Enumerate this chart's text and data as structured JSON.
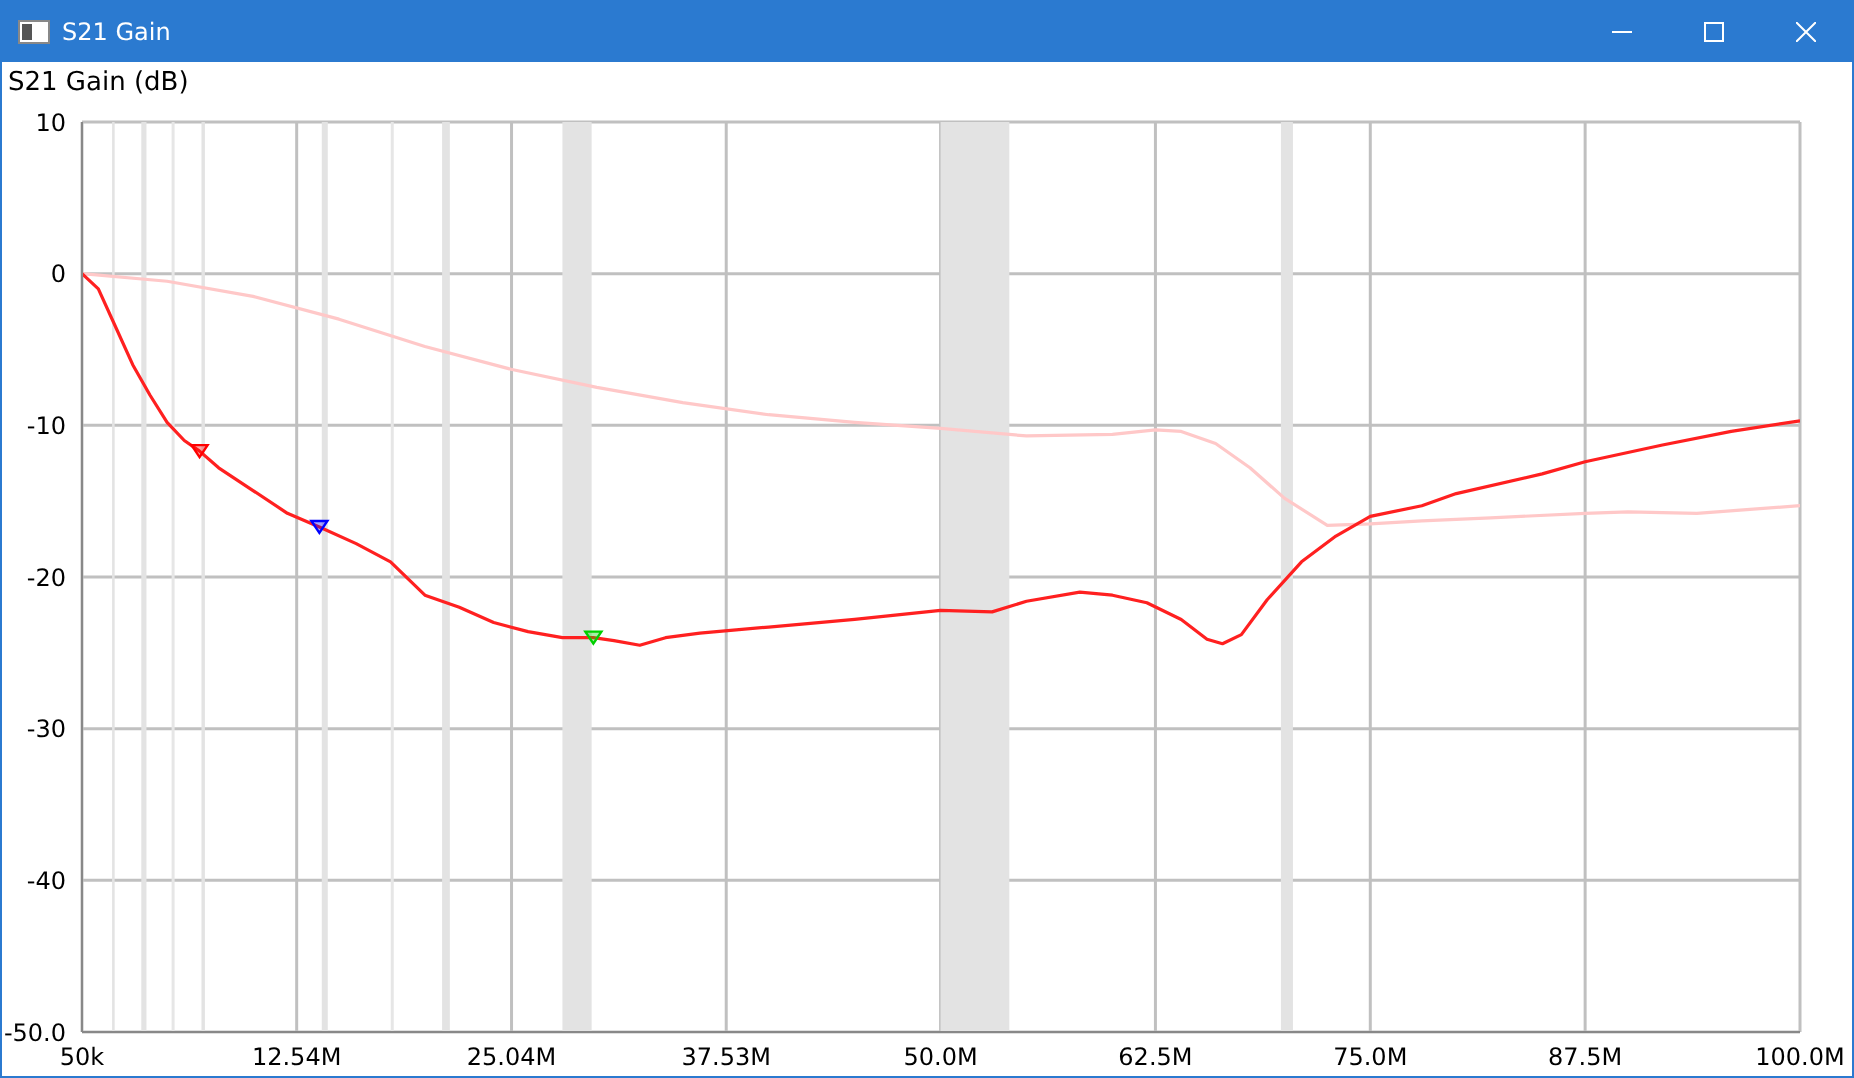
{
  "chart_data": {
    "type": "line",
    "title": "S21 Gain",
    "ylabel": "S21  Gain (dB)",
    "xlim": [
      50000,
      100000000
    ],
    "xticks": [
      {
        "value": 50000,
        "label": "50k"
      },
      {
        "value": 12540000,
        "label": "12.54M"
      },
      {
        "value": 25040000,
        "label": "25.04M"
      },
      {
        "value": 37530000,
        "label": "37.53M"
      },
      {
        "value": 50000000,
        "label": "50.0M"
      },
      {
        "value": 62500000,
        "label": "62.5M"
      },
      {
        "value": 75000000,
        "label": "75.0M"
      },
      {
        "value": 87500000,
        "label": "87.5M"
      },
      {
        "value": 100000000,
        "label": "100.0M"
      }
    ],
    "ylim": [
      -50,
      10
    ],
    "yticks": [
      10,
      0,
      -10,
      -20,
      -30,
      -40,
      {
        "value": -50,
        "label": "-50.0"
      }
    ],
    "grid": true,
    "line_style": "solid",
    "series": [
      {
        "type": "line",
        "color": "#ffc8c8",
        "x": [
          50000,
          5000000,
          10000000,
          15000000,
          20000000,
          25000000,
          30000000,
          35000000,
          40000000,
          45000000,
          50000000,
          55000000,
          60000000,
          62500000,
          64000000,
          66000000,
          68000000,
          70000000,
          72500000,
          75000000,
          78000000,
          82000000,
          87500000,
          90000000,
          94000000,
          100000000
        ],
        "values": [
          0,
          -0.5,
          -1.5,
          -3,
          -4.8,
          -6.3,
          -7.5,
          -8.5,
          -9.3,
          -9.8,
          -10.2,
          -10.7,
          -10.6,
          -10.3,
          -10.4,
          -11.2,
          -12.8,
          -14.8,
          -16.6,
          -16.5,
          -16.3,
          -16.1,
          -15.8,
          -15.7,
          -15.8,
          -15.3
        ]
      },
      {
        "type": "line",
        "color": "#ff2020",
        "x": [
          50000,
          1000000,
          2000000,
          3000000,
          4000000,
          5000000,
          6000000,
          6890000,
          8000000,
          10000000,
          12000000,
          13860000,
          16000000,
          18000000,
          20000000,
          22000000,
          24000000,
          26000000,
          28000000,
          29800000,
          31000000,
          32500000,
          34000000,
          36000000,
          40000000,
          45000000,
          50000000,
          53000000,
          55000000,
          58100000,
          60000000,
          62000000,
          64000000,
          65500000,
          66400000,
          67500000,
          69000000,
          71000000,
          73000000,
          75000000,
          78000000,
          80000000,
          85000000,
          87500000,
          92000000,
          96000000,
          100000000
        ],
        "values": [
          0,
          -1,
          -3.5,
          -6,
          -8,
          -9.8,
          -11,
          -11.7,
          -12.8,
          -14.3,
          -15.8,
          -16.7,
          -17.8,
          -19,
          -21.2,
          -22,
          -23,
          -23.6,
          -24,
          -24,
          -24.2,
          -24.5,
          -24,
          -23.7,
          -23.3,
          -22.8,
          -22.2,
          -22.3,
          -21.6,
          -21,
          -21.2,
          -21.7,
          -22.8,
          -24.1,
          -24.4,
          -23.8,
          -21.5,
          -19,
          -17.3,
          -16,
          -15.3,
          -14.5,
          -13.2,
          -12.4,
          -11.3,
          -10.4,
          -9.7
        ]
      },
      {
        "type": "scatter",
        "marker": "triangle",
        "x": [
          6890000,
          13860000,
          29800000
        ],
        "values": [
          -11.7,
          -16.7,
          -24.0
        ],
        "colors": [
          "#ff0000",
          "#0000ff",
          "#00d000"
        ]
      }
    ],
    "bands": [
      {
        "axis": "x",
        "from": 1800000,
        "to": 1950000,
        "color": "#e3e3e3"
      },
      {
        "axis": "x",
        "from": 3500000,
        "to": 3800000,
        "color": "#e3e3e3"
      },
      {
        "axis": "x",
        "from": 7000000,
        "to": 7200000,
        "color": "#e3e3e3"
      },
      {
        "axis": "x",
        "from": 14000000,
        "to": 14350000,
        "color": "#e3e3e3"
      },
      {
        "axis": "x",
        "from": 21000000,
        "to": 21450000,
        "color": "#e3e3e3"
      },
      {
        "axis": "x",
        "from": 28000000,
        "to": 29700000,
        "color": "#e3e3e3"
      },
      {
        "axis": "x",
        "from": 50000000,
        "to": 54000000,
        "color": "#e3e3e3"
      },
      {
        "axis": "x",
        "from": 69800000,
        "to": 70500000,
        "color": "#e3e3e3"
      }
    ],
    "ref_lines": [
      {
        "axis": "x",
        "value": 5350000,
        "color": "#e6e6e6"
      },
      {
        "axis": "x",
        "value": 18100000,
        "color": "#e6e6e6"
      }
    ]
  }
}
